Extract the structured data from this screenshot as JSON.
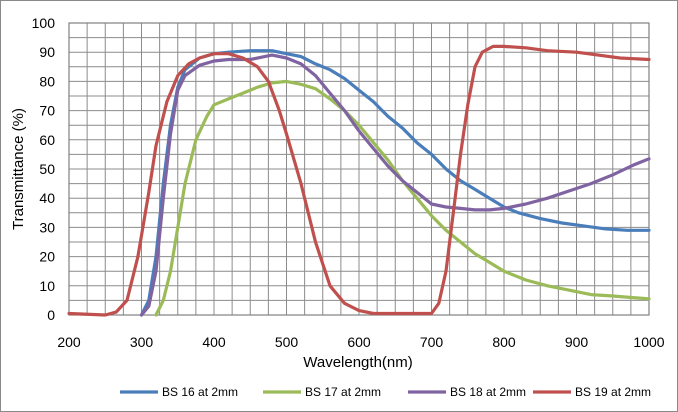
{
  "chart_data": {
    "type": "line",
    "title": "",
    "xlabel": "Wavelength(nm)",
    "ylabel": "Transmittance (%)",
    "xlim": [
      200,
      1000
    ],
    "ylim": [
      0,
      100
    ],
    "x_ticks": [
      "200",
      "300",
      "400",
      "500",
      "600",
      "700",
      "800",
      "900",
      "1000"
    ],
    "y_ticks": [
      "0",
      "10",
      "20",
      "30",
      "40",
      "50",
      "60",
      "70",
      "80",
      "90",
      "100"
    ],
    "grid": true,
    "legend_position": "bottom",
    "series": [
      {
        "name": "BS 16 at 2mm",
        "color": "#4a7ebb",
        "points": [
          [
            300,
            0
          ],
          [
            310,
            5
          ],
          [
            320,
            20
          ],
          [
            330,
            45
          ],
          [
            340,
            65
          ],
          [
            350,
            78
          ],
          [
            360,
            84
          ],
          [
            380,
            88
          ],
          [
            400,
            89.5
          ],
          [
            420,
            90
          ],
          [
            450,
            90.5
          ],
          [
            480,
            90.5
          ],
          [
            500,
            89.5
          ],
          [
            520,
            88.5
          ],
          [
            540,
            86
          ],
          [
            560,
            84
          ],
          [
            580,
            81
          ],
          [
            600,
            77
          ],
          [
            620,
            73
          ],
          [
            640,
            68
          ],
          [
            660,
            64
          ],
          [
            680,
            59
          ],
          [
            700,
            55
          ],
          [
            720,
            50
          ],
          [
            740,
            46
          ],
          [
            760,
            43
          ],
          [
            780,
            40
          ],
          [
            800,
            37
          ],
          [
            820,
            35
          ],
          [
            850,
            33
          ],
          [
            880,
            31.5
          ],
          [
            910,
            30.5
          ],
          [
            940,
            29.5
          ],
          [
            970,
            29
          ],
          [
            1000,
            29
          ]
        ]
      },
      {
        "name": "BS 17 at 2mm",
        "color": "#9bbb59",
        "points": [
          [
            320,
            0
          ],
          [
            330,
            5
          ],
          [
            340,
            15
          ],
          [
            350,
            30
          ],
          [
            360,
            45
          ],
          [
            375,
            60
          ],
          [
            390,
            68
          ],
          [
            400,
            72
          ],
          [
            420,
            74
          ],
          [
            440,
            76
          ],
          [
            460,
            78
          ],
          [
            480,
            79.5
          ],
          [
            500,
            80
          ],
          [
            520,
            79
          ],
          [
            540,
            77.5
          ],
          [
            560,
            74
          ],
          [
            580,
            70
          ],
          [
            600,
            65
          ],
          [
            620,
            59
          ],
          [
            640,
            53
          ],
          [
            660,
            46
          ],
          [
            680,
            40
          ],
          [
            700,
            34
          ],
          [
            720,
            29
          ],
          [
            740,
            25
          ],
          [
            760,
            21
          ],
          [
            780,
            18
          ],
          [
            800,
            15
          ],
          [
            830,
            12
          ],
          [
            860,
            10
          ],
          [
            890,
            8.5
          ],
          [
            920,
            7
          ],
          [
            950,
            6.5
          ],
          [
            1000,
            5.5
          ]
        ]
      },
      {
        "name": "BS 18 at 2mm",
        "color": "#8064a2",
        "points": [
          [
            300,
            0
          ],
          [
            310,
            3
          ],
          [
            320,
            15
          ],
          [
            330,
            40
          ],
          [
            340,
            62
          ],
          [
            350,
            77
          ],
          [
            360,
            82
          ],
          [
            380,
            85.5
          ],
          [
            400,
            87
          ],
          [
            420,
            87.5
          ],
          [
            450,
            87.5
          ],
          [
            480,
            89
          ],
          [
            500,
            88
          ],
          [
            520,
            86
          ],
          [
            540,
            82
          ],
          [
            560,
            76
          ],
          [
            580,
            70
          ],
          [
            600,
            63
          ],
          [
            620,
            57
          ],
          [
            640,
            51
          ],
          [
            660,
            46
          ],
          [
            680,
            42
          ],
          [
            700,
            38
          ],
          [
            720,
            37
          ],
          [
            740,
            36.5
          ],
          [
            760,
            36
          ],
          [
            780,
            36
          ],
          [
            800,
            36.5
          ],
          [
            830,
            38
          ],
          [
            860,
            40
          ],
          [
            890,
            42.5
          ],
          [
            920,
            45
          ],
          [
            950,
            48
          ],
          [
            980,
            51.5
          ],
          [
            1000,
            53.5
          ]
        ]
      },
      {
        "name": "BS 19 at 2mm",
        "color": "#c0504d",
        "points": [
          [
            200,
            0.5
          ],
          [
            250,
            0
          ],
          [
            265,
            1
          ],
          [
            280,
            5
          ],
          [
            295,
            20
          ],
          [
            310,
            42
          ],
          [
            320,
            58
          ],
          [
            335,
            73
          ],
          [
            350,
            82
          ],
          [
            365,
            86
          ],
          [
            380,
            88
          ],
          [
            400,
            89.5
          ],
          [
            420,
            89.5
          ],
          [
            440,
            88
          ],
          [
            460,
            85
          ],
          [
            475,
            80
          ],
          [
            490,
            70
          ],
          [
            500,
            62
          ],
          [
            520,
            45
          ],
          [
            540,
            25
          ],
          [
            560,
            10
          ],
          [
            580,
            4
          ],
          [
            600,
            1.5
          ],
          [
            620,
            0.5
          ],
          [
            650,
            0.5
          ],
          [
            680,
            0.5
          ],
          [
            700,
            0.5
          ],
          [
            710,
            4
          ],
          [
            720,
            15
          ],
          [
            730,
            35
          ],
          [
            740,
            55
          ],
          [
            750,
            72
          ],
          [
            760,
            85
          ],
          [
            770,
            90
          ],
          [
            785,
            92
          ],
          [
            800,
            92
          ],
          [
            830,
            91.5
          ],
          [
            860,
            90.5
          ],
          [
            900,
            90
          ],
          [
            930,
            89
          ],
          [
            960,
            88
          ],
          [
            1000,
            87.5
          ]
        ]
      }
    ]
  }
}
